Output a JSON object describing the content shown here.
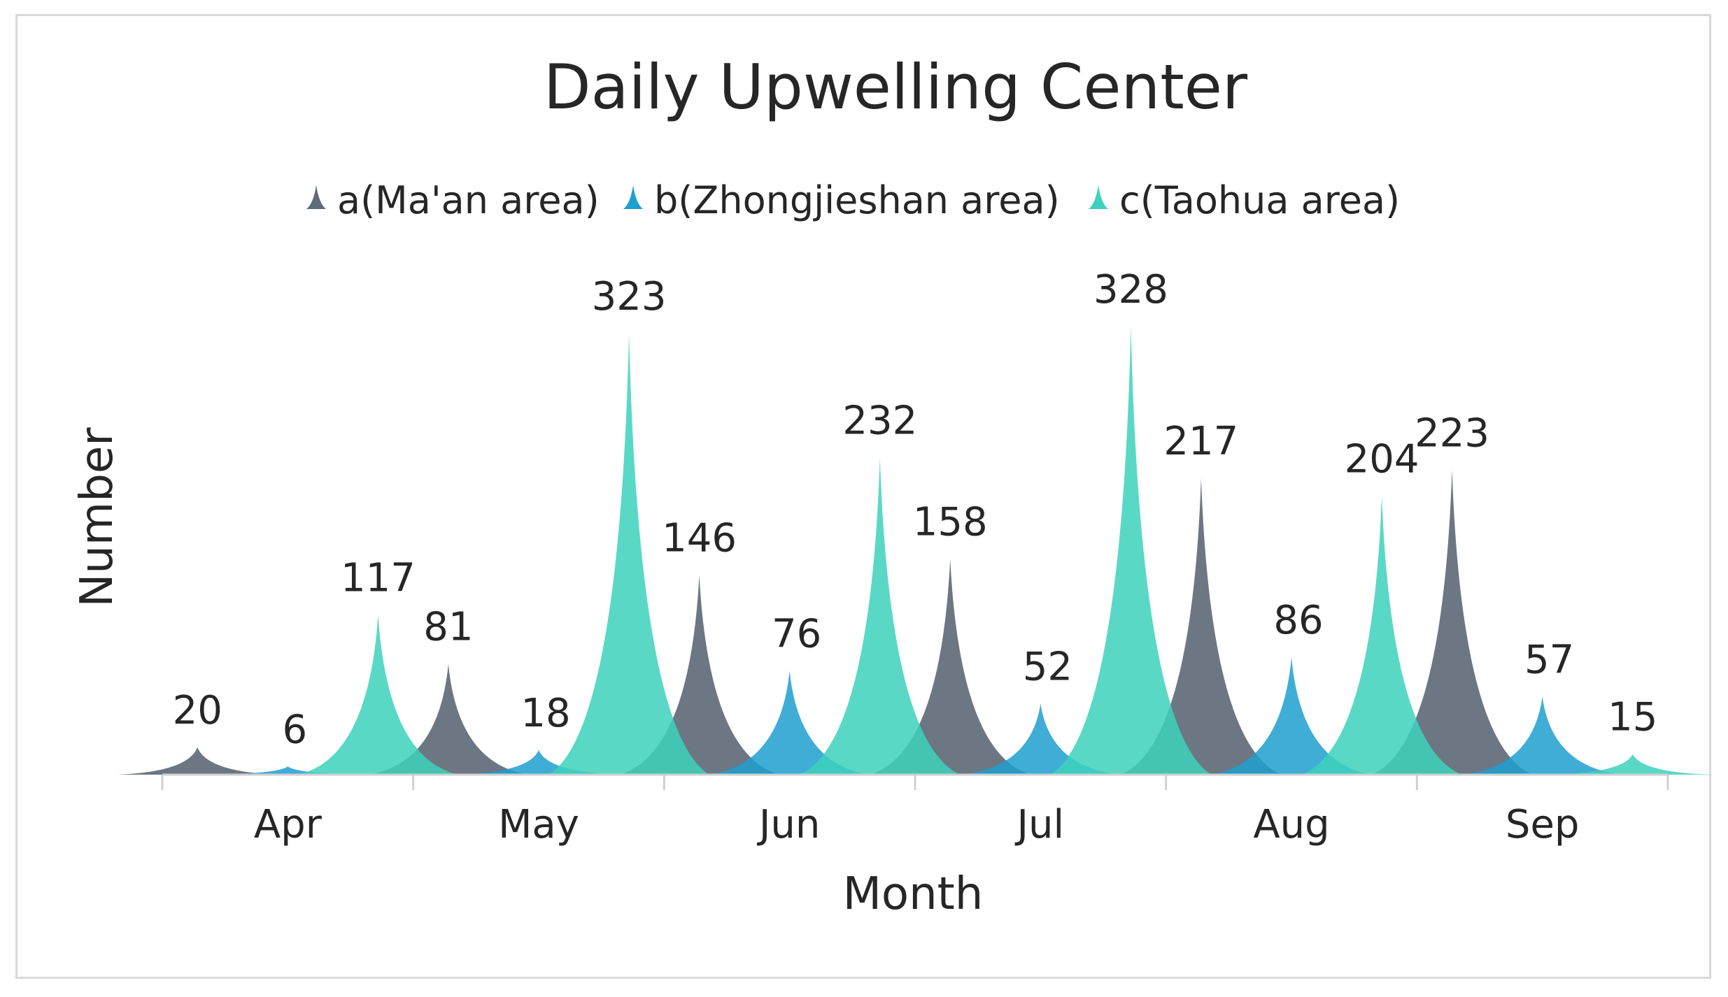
{
  "chart_data": {
    "type": "area",
    "title": "Daily Upwelling Center",
    "xlabel": "Month",
    "ylabel": "Number",
    "categories": [
      "Apr",
      "May",
      "Jun",
      "Jul",
      "Aug",
      "Sep"
    ],
    "ylim": [
      0,
      350
    ],
    "grid": false,
    "legend_position": "top",
    "series": [
      {
        "name": "a(Ma'an area)",
        "color": "#5f6b78",
        "values": [
          20,
          81,
          146,
          158,
          217,
          223
        ]
      },
      {
        "name": "b(Zhongjieshan area)",
        "color": "#1e9fd0",
        "values": [
          6,
          18,
          76,
          52,
          86,
          57
        ]
      },
      {
        "name": "c(Taohua area)",
        "color": "#3dd1bc",
        "values": [
          117,
          323,
          232,
          328,
          204,
          15
        ]
      }
    ]
  }
}
